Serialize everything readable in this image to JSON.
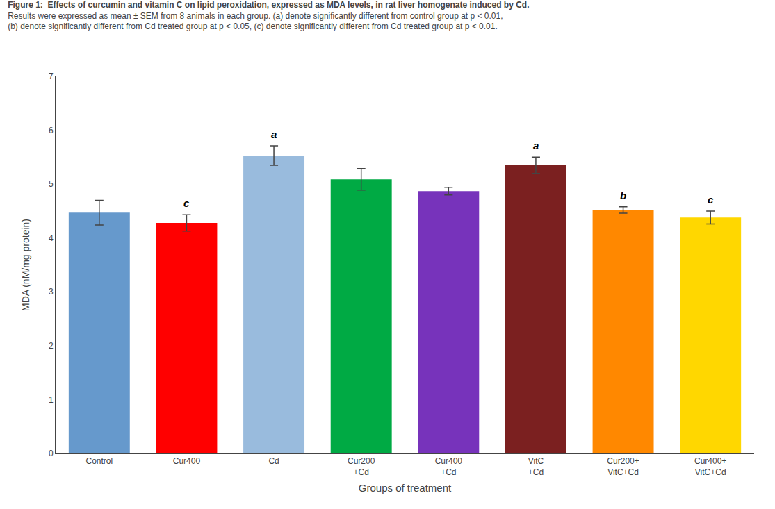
{
  "chart_data": {
    "type": "bar",
    "title": "Figure 1:  Effects of curcumin and vitamin C on lipid peroxidation, expressed as MDA levels, in rat liver homogenate induced by Cd.",
    "subtitle": [
      "Results were expressed as mean ± SEM from 8 animals in each group. (a) denote significantly different from control group at p < 0.01,",
      "(b) denote significantly different from Cd treated group at p < 0.05, (c) denote significantly different from Cd treated group at p < 0.01."
    ],
    "xlabel": "Groups of treatment",
    "ylabel": "MDA (nM/mg protein)",
    "categories": [
      "Control",
      "Cur400",
      "Cd",
      "Cur200\n+Cd",
      "Cur400\n+Cd",
      "VitC\n+Cd",
      "Cur200+\nVitC+Cd",
      "Cur400+\nVitC+Cd"
    ],
    "values": [
      4.47,
      4.28,
      5.53,
      5.09,
      4.87,
      5.35,
      4.52,
      4.38
    ],
    "errors": [
      0.23,
      0.15,
      0.18,
      0.2,
      0.07,
      0.15,
      0.06,
      0.12
    ],
    "colors": [
      "#6699CC",
      "#FF0000",
      "#99BBDD",
      "#00AA44",
      "#7733BB",
      "#7B2020",
      "#FF8800",
      "#FFD700"
    ],
    "annotations": [
      {
        "category": "Cur400",
        "text": "c"
      },
      {
        "category": "Cd",
        "text": "a"
      },
      {
        "category": "VitC\n+Cd",
        "text": "a"
      },
      {
        "category": "Cur200+\nVitC+Cd",
        "text": "b"
      },
      {
        "category": "Cur400+\nVitC+Cd",
        "text": "c"
      }
    ],
    "ylim": [
      0,
      7
    ],
    "yticks": [
      0,
      1,
      2,
      3,
      4,
      5,
      6,
      7
    ],
    "grid": false
  }
}
